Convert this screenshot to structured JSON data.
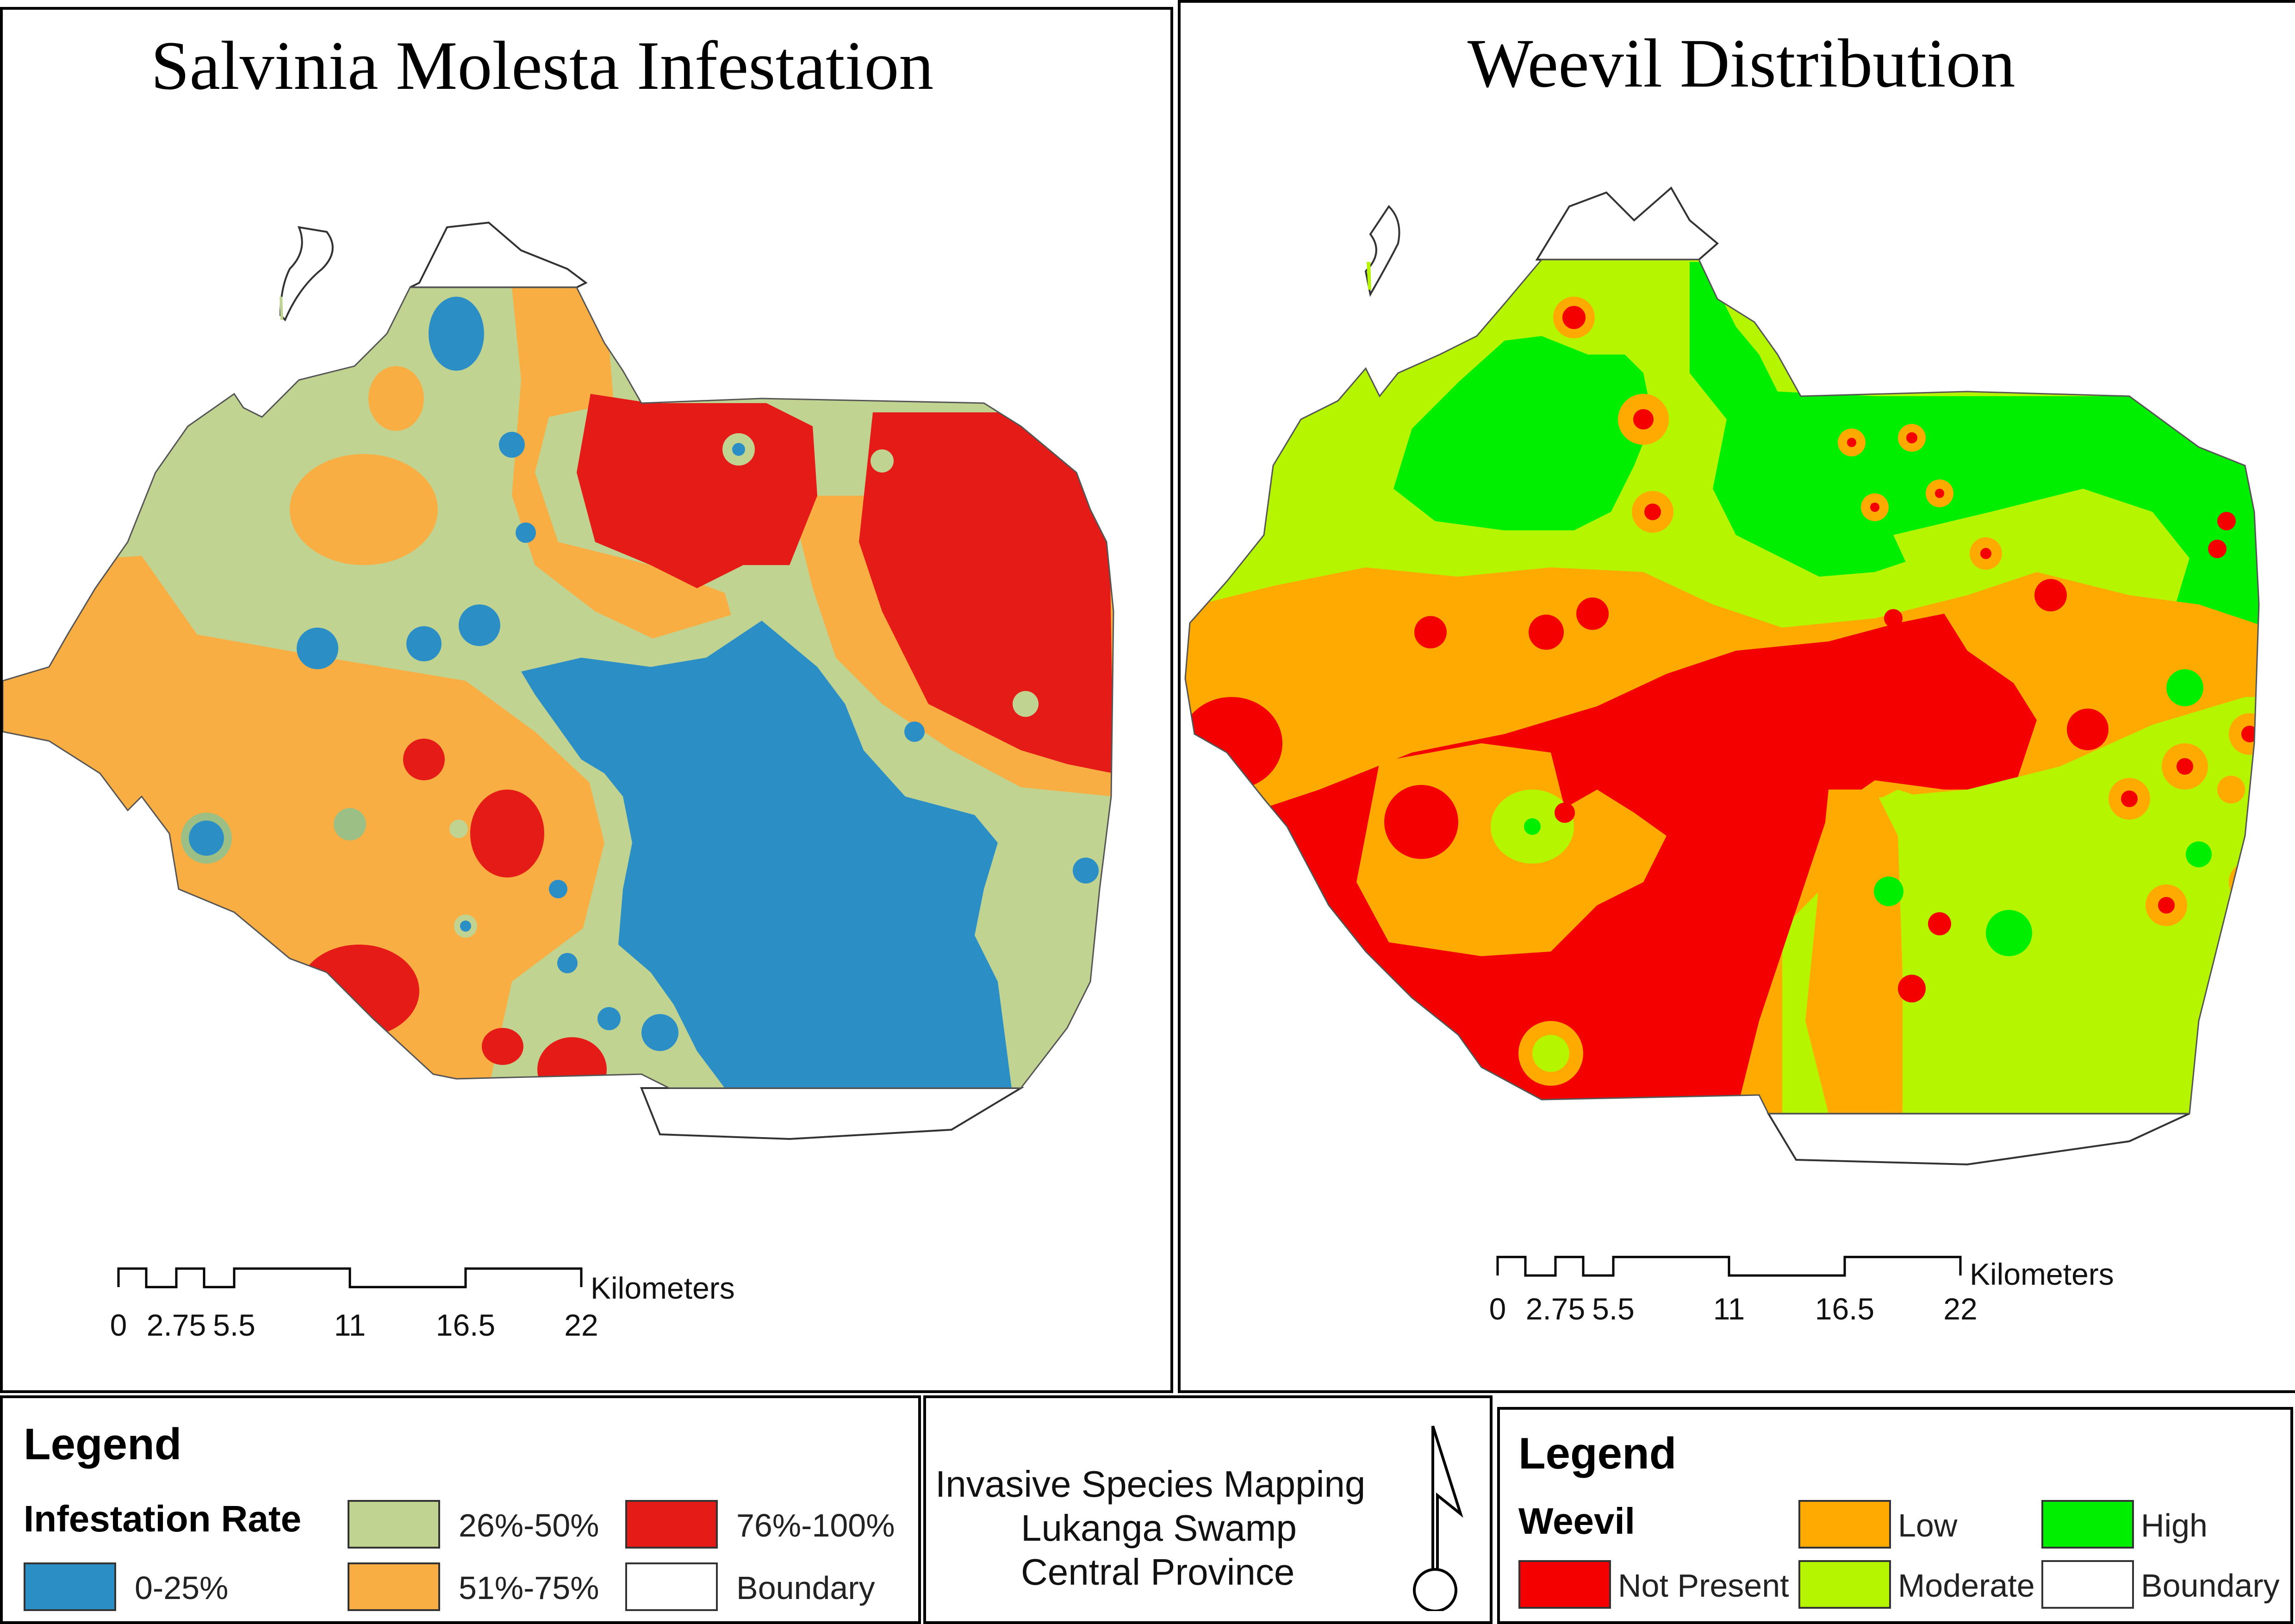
{
  "left_map": {
    "title": "Salvinia  Molesta Infestation",
    "scale": {
      "ticks": [
        "0",
        "2.75",
        "5.5",
        "11",
        "16.5",
        "22"
      ],
      "unit": "Kilometers"
    }
  },
  "right_map": {
    "title": "Weevil Distribution",
    "scale": {
      "ticks": [
        "0",
        "2.75",
        "5.5",
        "11",
        "16.5",
        "22"
      ],
      "unit": "Kilometers"
    }
  },
  "legend_left": {
    "heading": "Legend",
    "subheading": "Infestation Rate",
    "items": [
      {
        "label": "0-25%",
        "color": "#2b8fc6"
      },
      {
        "label": "26%-50%",
        "color": "#c1d391"
      },
      {
        "label": "51%-75%",
        "color": "#f9ae43"
      },
      {
        "label": "76%-100%",
        "color": "#e51b18"
      },
      {
        "label": "Boundary",
        "color": "#ffffff"
      }
    ]
  },
  "title_box": {
    "lines": [
      "Invasive Species Mapping",
      "Lukanga Swamp",
      "Central Province"
    ],
    "north_arrow": "north-arrow-icon"
  },
  "legend_right": {
    "heading": "Legend",
    "subheading": "Weevil",
    "items": [
      {
        "label": "Not Present",
        "color": "#f40000"
      },
      {
        "label": "Low",
        "color": "#ffaa00"
      },
      {
        "label": "Moderate",
        "color": "#b6f500"
      },
      {
        "label": "High",
        "color": "#00ef00"
      },
      {
        "label": "Boundary",
        "color": "#ffffff"
      }
    ]
  }
}
